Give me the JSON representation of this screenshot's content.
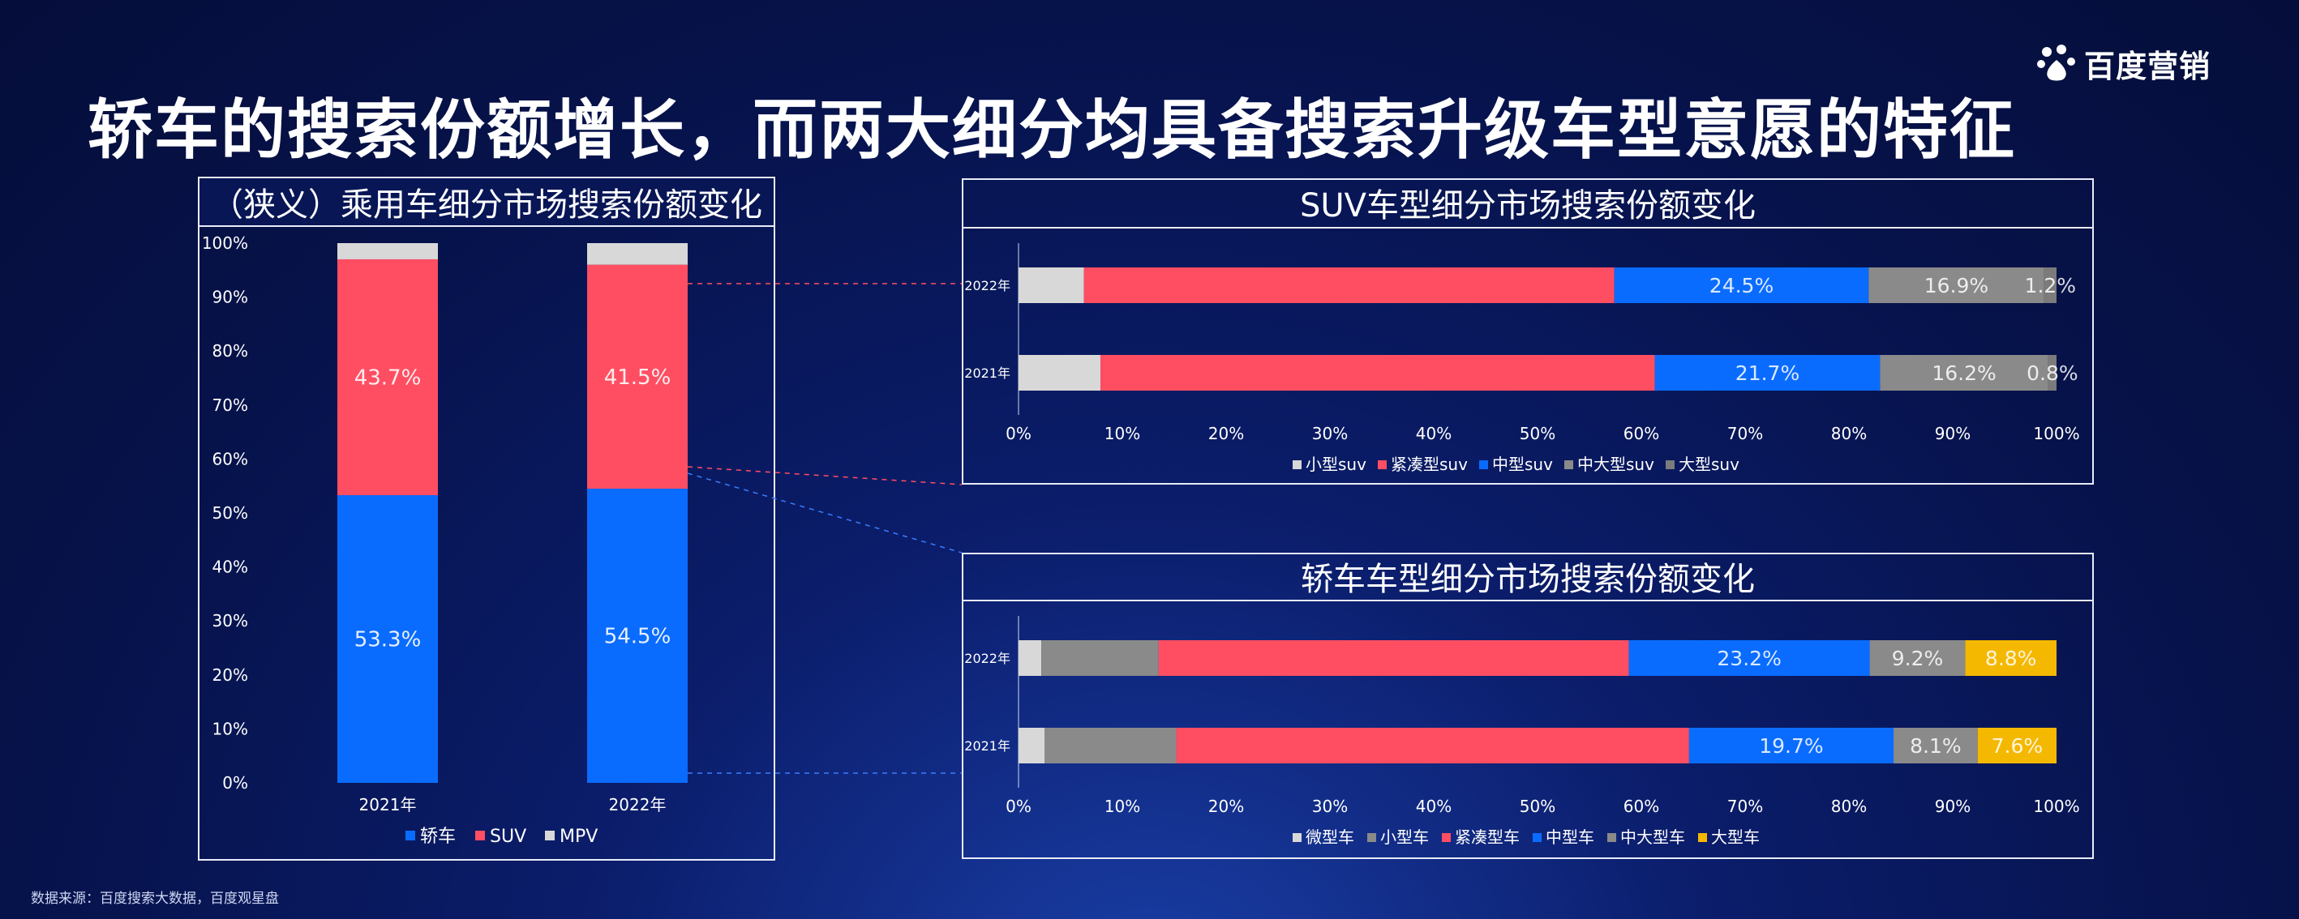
{
  "logo": {
    "text": "百度营销",
    "icon": "baidu-paw-icon"
  },
  "title": "轿车的搜索份额增长，而两大细分均具备搜索升级车型意愿的特征",
  "source": "数据来源：百度搜索大数据，百度观星盘",
  "colors": {
    "blue": "#0a6cff",
    "red": "#ff4e62",
    "light_gray": "#d8d8d8",
    "gray": "#8a8a8a",
    "dark_gray": "#7b7b7b",
    "yellow": "#f5b800"
  },
  "chart_data": [
    {
      "type": "bar",
      "stacked": true,
      "title": "（狭义）乘用车细分市场搜索份额变化",
      "categories": [
        "2021年",
        "2022年"
      ],
      "ylim": [
        0,
        100
      ],
      "yticks": [
        "0%",
        "10%",
        "20%",
        "30%",
        "40%",
        "50%",
        "60%",
        "70%",
        "80%",
        "90%",
        "100%"
      ],
      "series": [
        {
          "name": "轿车",
          "values": [
            53.3,
            54.5
          ],
          "labels": [
            "53.3%",
            "54.5%"
          ],
          "color": "#0a6cff"
        },
        {
          "name": "SUV",
          "values": [
            43.7,
            41.5
          ],
          "labels": [
            "43.7%",
            "41.5%"
          ],
          "color": "#ff4e62"
        },
        {
          "name": "MPV",
          "values": [
            3.0,
            4.0
          ],
          "labels": [
            "",
            ""
          ],
          "color": "#d8d8d8"
        }
      ],
      "legend": "bottom"
    },
    {
      "type": "bar",
      "orientation": "horizontal",
      "stacked": true,
      "title": "SUV车型细分市场搜索份额变化",
      "categories": [
        "2022年",
        "2021年"
      ],
      "xlim": [
        0,
        100
      ],
      "xticks": [
        "0%",
        "10%",
        "20%",
        "30%",
        "40%",
        "50%",
        "60%",
        "70%",
        "80%",
        "90%",
        "100%"
      ],
      "series": [
        {
          "name": "小型suv",
          "values": [
            6.3,
            7.9
          ],
          "labels": [
            "",
            ""
          ],
          "color": "#d8d8d8"
        },
        {
          "name": "紧凑型suv",
          "values": [
            51.1,
            53.4
          ],
          "labels": [
            "",
            ""
          ],
          "color": "#ff4e62"
        },
        {
          "name": "中型suv",
          "values": [
            24.5,
            21.7
          ],
          "labels": [
            "24.5%",
            "21.7%"
          ],
          "color": "#0a6cff"
        },
        {
          "name": "中大型suv",
          "values": [
            16.9,
            16.2
          ],
          "labels": [
            "16.9%",
            "16.2%"
          ],
          "color": "#8a8a8a"
        },
        {
          "name": "大型suv",
          "values": [
            1.2,
            0.8
          ],
          "labels": [
            "1.2%",
            "0.8%"
          ],
          "color": "#7b7b7b"
        }
      ],
      "legend": "bottom"
    },
    {
      "type": "bar",
      "orientation": "horizontal",
      "stacked": true,
      "title": "轿车车型细分市场搜索份额变化",
      "categories": [
        "2022年",
        "2021年"
      ],
      "xlim": [
        0,
        100
      ],
      "xticks": [
        "0%",
        "10%",
        "20%",
        "30%",
        "40%",
        "50%",
        "60%",
        "70%",
        "80%",
        "90%",
        "100%"
      ],
      "series": [
        {
          "name": "微型车",
          "values": [
            2.2,
            2.5
          ],
          "labels": [
            "",
            ""
          ],
          "color": "#d8d8d8"
        },
        {
          "name": "小型车",
          "values": [
            11.3,
            12.7
          ],
          "labels": [
            "",
            ""
          ],
          "color": "#8a8a8a"
        },
        {
          "name": "紧凑型车",
          "values": [
            45.3,
            49.4
          ],
          "labels": [
            "",
            ""
          ],
          "color": "#ff4e62"
        },
        {
          "name": "中型车",
          "values": [
            23.2,
            19.7
          ],
          "labels": [
            "23.2%",
            "19.7%"
          ],
          "color": "#0a6cff"
        },
        {
          "name": "中大型车",
          "values": [
            9.2,
            8.1
          ],
          "labels": [
            "9.2%",
            "8.1%"
          ],
          "color": "#8a8a8a"
        },
        {
          "name": "大型车",
          "values": [
            8.8,
            7.6
          ],
          "labels": [
            "8.8%",
            "7.6%"
          ],
          "color": "#f5b800"
        }
      ],
      "legend": "bottom"
    }
  ]
}
